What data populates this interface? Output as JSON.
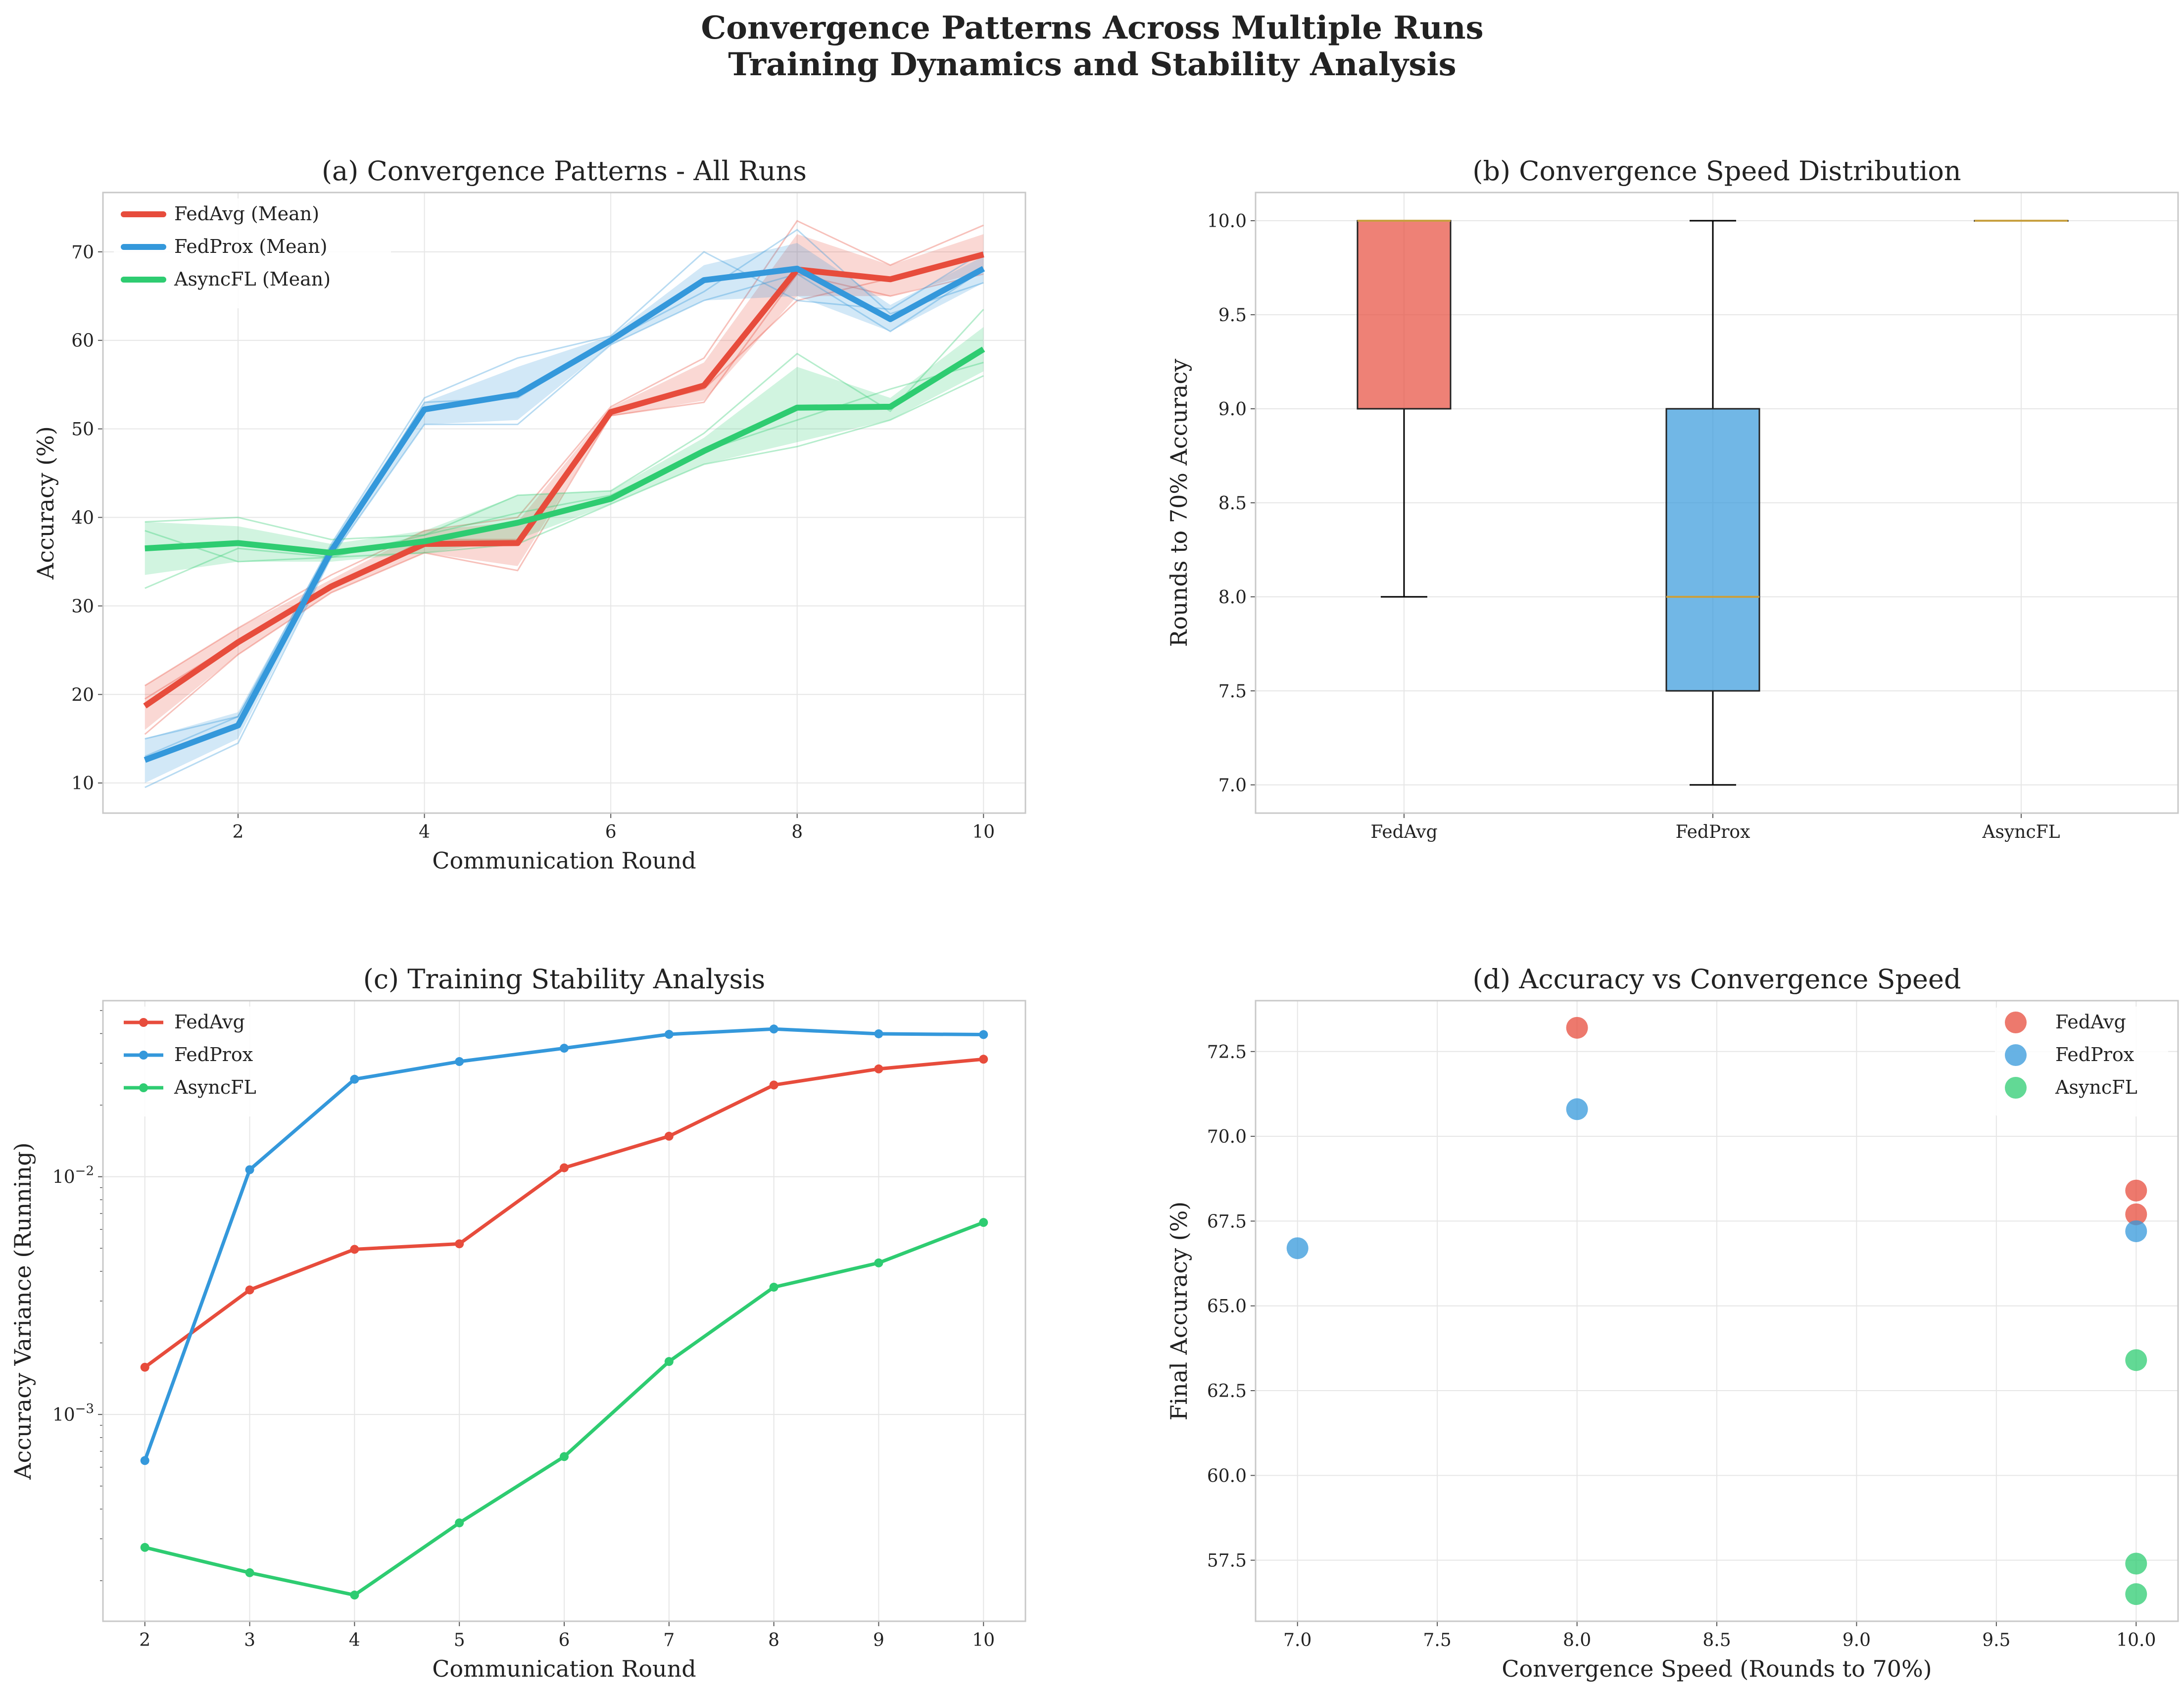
{
  "suptitle": {
    "line1": "Convergence Patterns Across Multiple Runs",
    "line2": "Training Dynamics and Stability Analysis"
  },
  "colors": {
    "FedAvg": "#e74c3c",
    "FedProx": "#3498db",
    "AsyncFL": "#2ecc71",
    "median": "#c8a040"
  },
  "chart_data": [
    {
      "id": "a",
      "type": "line",
      "title": "(a) Convergence Patterns - All Runs",
      "xlabel": "Communication Round",
      "ylabel": "Accuracy (%)",
      "xlim": [
        0.55,
        10.45
      ],
      "ylim": [
        6.6,
        76.7
      ],
      "xticks": [
        2,
        4,
        6,
        8,
        10
      ],
      "yticks": [
        10,
        20,
        30,
        40,
        50,
        60,
        70
      ],
      "legend_position": "upper-left",
      "grid": true,
      "x": [
        1,
        2,
        3,
        4,
        5,
        6,
        7,
        8,
        9,
        10
      ],
      "series": [
        {
          "name": "FedAvg (Mean)",
          "key": "FedAvg",
          "mean": [
            18.7,
            25.9,
            32.2,
            37.0,
            37.1,
            51.9,
            54.9,
            68.0,
            66.9,
            69.7
          ],
          "band_low": [
            16.0,
            24.5,
            31.5,
            36.0,
            34.5,
            51.4,
            53.2,
            65.0,
            65.0,
            67.8
          ],
          "band_high": [
            21.0,
            27.5,
            33.0,
            38.5,
            39.5,
            52.4,
            57.5,
            72.0,
            68.5,
            72.0
          ],
          "runs": [
            [
              15.5,
              24.5,
              31.5,
              36.0,
              34.0,
              51.5,
              53.0,
              67.5,
              65.0,
              67.5
            ],
            [
              19.5,
              26.0,
              32.0,
              37.5,
              37.5,
              52.0,
              54.5,
              64.5,
              67.0,
              69.5
            ],
            [
              21.0,
              27.5,
              33.5,
              38.5,
              40.0,
              52.5,
              58.0,
              73.5,
              68.5,
              73.0
            ]
          ]
        },
        {
          "name": "FedProx (Mean)",
          "key": "FedProx",
          "mean": [
            12.6,
            16.5,
            36.2,
            52.2,
            53.9,
            60.0,
            66.8,
            68.1,
            62.4,
            68.1
          ],
          "band_low": [
            10.0,
            15.0,
            35.5,
            50.5,
            51.0,
            59.5,
            64.5,
            65.0,
            61.0,
            66.5
          ],
          "band_high": [
            15.0,
            18.0,
            37.0,
            53.0,
            57.0,
            60.5,
            68.5,
            71.0,
            64.0,
            69.5
          ],
          "runs": [
            [
              9.5,
              14.5,
              35.5,
              50.5,
              50.5,
              59.5,
              64.5,
              67.5,
              61.0,
              68.0
            ],
            [
              13.0,
              17.5,
              36.0,
              53.0,
              53.5,
              60.0,
              65.5,
              72.5,
              63.0,
              66.5
            ],
            [
              15.0,
              17.5,
              37.0,
              53.5,
              58.0,
              60.5,
              70.0,
              64.5,
              63.5,
              70.0
            ]
          ]
        },
        {
          "name": "AsyncFL (Mean)",
          "key": "AsyncFL",
          "mean": [
            36.5,
            37.1,
            36.0,
            37.3,
            39.4,
            42.1,
            47.5,
            52.4,
            52.5,
            59.0
          ],
          "band_low": [
            33.5,
            35.0,
            35.0,
            36.0,
            37.5,
            41.5,
            46.0,
            48.5,
            51.0,
            56.5
          ],
          "band_high": [
            39.5,
            39.0,
            37.0,
            38.5,
            42.5,
            43.0,
            49.0,
            57.0,
            53.5,
            61.5
          ],
          "runs": [
            [
              32.0,
              36.5,
              35.5,
              36.0,
              37.0,
              41.5,
              46.0,
              48.0,
              51.0,
              56.0
            ],
            [
              38.5,
              35.0,
              35.5,
              38.0,
              40.5,
              42.5,
              47.5,
              51.0,
              54.5,
              57.5
            ],
            [
              39.5,
              40.0,
              37.5,
              38.0,
              42.5,
              43.0,
              49.5,
              58.5,
              52.0,
              63.5
            ]
          ]
        }
      ]
    },
    {
      "id": "b",
      "type": "box",
      "title": "(b) Convergence Speed Distribution",
      "xlabel": "",
      "ylabel": "Rounds to 70% Accuracy",
      "ylim": [
        6.85,
        10.15
      ],
      "yticks": [
        7.0,
        7.5,
        8.0,
        8.5,
        9.0,
        9.5,
        10.0
      ],
      "categories": [
        "FedAvg",
        "FedProx",
        "AsyncFL"
      ],
      "grid": true,
      "boxes": [
        {
          "name": "FedAvg",
          "min": 8.0,
          "q1": 9.0,
          "median": 10.0,
          "q3": 10.0,
          "max": 10.0
        },
        {
          "name": "FedProx",
          "min": 7.0,
          "q1": 7.5,
          "median": 8.0,
          "q3": 9.0,
          "max": 10.0
        },
        {
          "name": "AsyncFL",
          "min": 10.0,
          "q1": 10.0,
          "median": 10.0,
          "q3": 10.0,
          "max": 10.0
        }
      ]
    },
    {
      "id": "c",
      "type": "line",
      "title": "(c) Training Stability Analysis",
      "xlabel": "Communication Round",
      "ylabel": "Accuracy Variance (Running)",
      "yscale": "log",
      "xlim": [
        1.6,
        10.4
      ],
      "ylim": [
        0.000135,
        0.055
      ],
      "xticks": [
        2,
        3,
        4,
        5,
        6,
        7,
        8,
        9,
        10
      ],
      "yticks": [
        0.001,
        0.01
      ],
      "ytick_labels": [
        {
          "base": "10",
          "exp": "−3"
        },
        {
          "base": "10",
          "exp": "−2"
        }
      ],
      "legend_position": "upper-left",
      "grid": true,
      "x": [
        2,
        3,
        4,
        5,
        6,
        7,
        8,
        9,
        10
      ],
      "series": [
        {
          "name": "FedAvg",
          "key": "FedAvg",
          "values": [
            0.00158,
            0.00334,
            0.00495,
            0.00522,
            0.0109,
            0.0148,
            0.0243,
            0.0284,
            0.0312
          ]
        },
        {
          "name": "FedProx",
          "key": "FedProx",
          "values": [
            0.00064,
            0.0107,
            0.0257,
            0.0305,
            0.0347,
            0.0397,
            0.0418,
            0.0399,
            0.0396
          ]
        },
        {
          "name": "AsyncFL",
          "key": "AsyncFL",
          "values": [
            0.000276,
            0.000216,
            0.000174,
            0.00035,
            0.000665,
            0.00167,
            0.00343,
            0.00434,
            0.00642
          ]
        }
      ]
    },
    {
      "id": "d",
      "type": "scatter",
      "title": "(d) Accuracy vs Convergence Speed",
      "xlabel": "Convergence Speed (Rounds to 70%)",
      "ylabel": "Final Accuracy (%)",
      "xlim": [
        6.85,
        10.15
      ],
      "ylim": [
        55.7,
        74.0
      ],
      "xticks": [
        7.0,
        7.5,
        8.0,
        8.5,
        9.0,
        9.5,
        10.0
      ],
      "yticks": [
        57.5,
        60.0,
        62.5,
        65.0,
        67.5,
        70.0,
        72.5
      ],
      "legend_position": "upper-right",
      "grid": true,
      "series": [
        {
          "name": "FedAvg",
          "key": "FedAvg",
          "points": [
            [
              8,
              73.2
            ],
            [
              10,
              68.4
            ],
            [
              10,
              67.7
            ]
          ]
        },
        {
          "name": "FedProx",
          "key": "FedProx",
          "points": [
            [
              8,
              70.8
            ],
            [
              7,
              66.7
            ],
            [
              10,
              67.2
            ]
          ]
        },
        {
          "name": "AsyncFL",
          "key": "AsyncFL",
          "points": [
            [
              10,
              63.4
            ],
            [
              10,
              57.4
            ],
            [
              10,
              56.5
            ]
          ]
        }
      ]
    }
  ]
}
